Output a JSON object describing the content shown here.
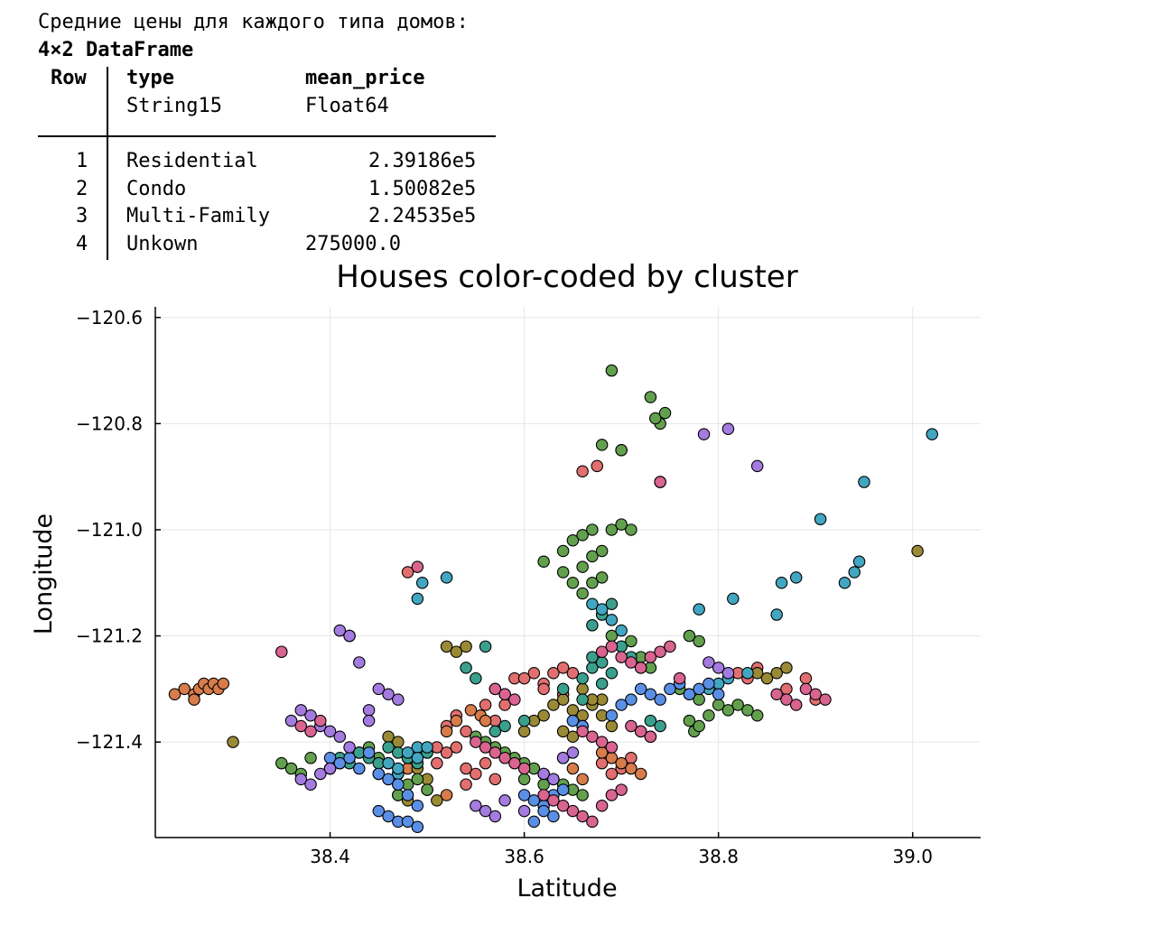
{
  "output": {
    "caption": "Средние цены для каждого типа домов:",
    "df_title": "4×2 DataFrame",
    "columns": [
      {
        "name": "Row",
        "eltype": ""
      },
      {
        "name": "type",
        "eltype": "String15"
      },
      {
        "name": "mean_price",
        "eltype": "Float64"
      }
    ],
    "rows": [
      {
        "row": "1",
        "type": "Residential",
        "mean_price": "2.39186e5"
      },
      {
        "row": "2",
        "type": "Condo",
        "mean_price": "1.50082e5"
      },
      {
        "row": "3",
        "type": "Multi-Family",
        "mean_price": "2.24535e5"
      },
      {
        "row": "4",
        "type": "Unkown",
        "mean_price": "275000.0"
      }
    ]
  },
  "chart_data": {
    "type": "scatter",
    "title": "Houses color-coded by cluster",
    "xlabel": "Latitude",
    "ylabel": "Longitude",
    "xlim": [
      38.22,
      39.07
    ],
    "ylim": [
      -121.58,
      -120.58
    ],
    "xticks": [
      38.4,
      38.6,
      38.8,
      39.0
    ],
    "xtick_labels": [
      "38.4",
      "38.6",
      "38.8",
      "39.0"
    ],
    "yticks": [
      -120.6,
      -120.8,
      -121.0,
      -121.2,
      -121.4
    ],
    "ytick_labels": [
      "−120.6",
      "−120.8",
      "−121.0",
      "−121.2",
      "−121.4"
    ],
    "grid": true,
    "legend": false,
    "cluster_colors": [
      "#e26f6f",
      "#d77c4a",
      "#9b8a35",
      "#62a04e",
      "#3aa08d",
      "#42a6c0",
      "#5a8fe6",
      "#a47be0",
      "#d8648f"
    ],
    "series": [
      {
        "cluster": 1,
        "x": [
          38.66,
          38.675,
          38.74,
          38.48,
          38.48,
          38.5,
          38.51,
          38.51,
          38.52,
          38.53,
          38.54,
          38.54,
          38.56,
          38.56,
          38.57,
          38.57,
          38.58,
          38.58,
          38.59,
          38.6,
          38.61,
          38.62,
          38.63,
          38.64,
          38.55,
          38.56,
          38.57,
          38.45,
          38.46,
          38.47,
          38.87,
          38.89,
          38.9,
          38.82,
          38.84,
          38.83,
          38.68,
          38.7,
          38.71,
          38.69,
          38.62,
          38.64,
          38.65,
          38.52,
          38.53,
          38.54
        ],
        "y": [
          -120.89,
          -120.88,
          -120.91,
          -121.08,
          -121.43,
          -121.42,
          -121.41,
          -121.44,
          -121.42,
          -121.41,
          -121.45,
          -121.48,
          -121.33,
          -121.36,
          -121.36,
          -121.3,
          -121.31,
          -121.33,
          -121.28,
          -121.28,
          -121.27,
          -121.29,
          -121.27,
          -121.26,
          -121.46,
          -121.44,
          -121.47,
          -121.46,
          -121.47,
          -121.48,
          -121.3,
          -121.28,
          -121.32,
          -121.27,
          -121.26,
          -121.28,
          -121.44,
          -121.45,
          -121.43,
          -121.46,
          -121.3,
          -121.31,
          -121.27,
          -121.37,
          -121.35,
          -121.38
        ]
      },
      {
        "cluster": 2,
        "x": [
          38.24,
          38.25,
          38.26,
          38.265,
          38.27,
          38.275,
          38.28,
          38.285,
          38.29,
          38.26,
          38.555,
          38.56,
          38.545,
          38.53,
          38.52,
          38.48,
          38.47,
          38.49,
          38.69,
          38.7,
          38.71,
          38.72,
          38.68,
          38.65,
          38.66,
          38.64,
          38.52,
          38.5
        ],
        "y": [
          -121.31,
          -121.3,
          -121.31,
          -121.3,
          -121.29,
          -121.3,
          -121.29,
          -121.3,
          -121.29,
          -121.32,
          -121.35,
          -121.36,
          -121.34,
          -121.36,
          -121.38,
          -121.45,
          -121.46,
          -121.44,
          -121.43,
          -121.44,
          -121.45,
          -121.46,
          -121.42,
          -121.45,
          -121.47,
          -121.43,
          -121.5,
          -121.49
        ]
      },
      {
        "cluster": 3,
        "x": [
          38.3,
          39.005,
          38.52,
          38.53,
          38.54,
          38.6,
          38.61,
          38.62,
          38.63,
          38.64,
          38.65,
          38.66,
          38.67,
          38.68,
          38.65,
          38.66,
          38.64,
          38.84,
          38.85,
          38.86,
          38.87,
          38.46,
          38.47,
          38.48,
          38.49,
          38.5,
          38.51,
          38.47,
          38.48,
          38.66,
          38.67,
          38.69,
          38.68
        ],
        "y": [
          -121.4,
          -121.04,
          -121.22,
          -121.23,
          -121.22,
          -121.38,
          -121.36,
          -121.35,
          -121.33,
          -121.32,
          -121.34,
          -121.35,
          -121.33,
          -121.32,
          -121.39,
          -121.37,
          -121.38,
          -121.27,
          -121.28,
          -121.27,
          -121.26,
          -121.39,
          -121.4,
          -121.43,
          -121.45,
          -121.47,
          -121.51,
          -121.5,
          -121.51,
          -121.3,
          -121.32,
          -121.37,
          -121.35
        ]
      },
      {
        "cluster": 4,
        "x": [
          38.69,
          38.7,
          38.73,
          38.74,
          38.735,
          38.745,
          38.68,
          38.7,
          38.62,
          38.64,
          38.65,
          38.66,
          38.67,
          38.69,
          38.7,
          38.71,
          38.66,
          38.67,
          38.68,
          38.64,
          38.65,
          38.66,
          38.67,
          38.68,
          38.69,
          38.7,
          38.71,
          38.72,
          38.73,
          38.77,
          38.775,
          38.78,
          38.79,
          38.8,
          38.81,
          38.77,
          38.78,
          38.55,
          38.56,
          38.57,
          38.58,
          38.59,
          38.6,
          38.61,
          38.62,
          38.63,
          38.64,
          38.65,
          38.66,
          38.6,
          38.62,
          38.64,
          38.35,
          38.36,
          38.37,
          38.38,
          38.4,
          38.41,
          38.42,
          38.43,
          38.44,
          38.45,
          38.46,
          38.47,
          38.48,
          38.49,
          38.5,
          38.47,
          38.76,
          38.77,
          38.78,
          38.82,
          38.83,
          38.84
        ],
        "y": [
          -120.7,
          -120.85,
          -120.75,
          -120.8,
          -120.79,
          -120.78,
          -120.84,
          -120.85,
          -121.06,
          -121.04,
          -121.02,
          -121.01,
          -121.0,
          -121.0,
          -120.99,
          -121.0,
          -121.07,
          -121.05,
          -121.04,
          -121.08,
          -121.1,
          -121.12,
          -121.1,
          -121.09,
          -121.2,
          -121.22,
          -121.21,
          -121.24,
          -121.26,
          -121.36,
          -121.38,
          -121.37,
          -121.35,
          -121.33,
          -121.34,
          -121.2,
          -121.21,
          -121.39,
          -121.4,
          -121.41,
          -121.42,
          -121.43,
          -121.44,
          -121.45,
          -121.46,
          -121.47,
          -121.48,
          -121.49,
          -121.5,
          -121.47,
          -121.48,
          -121.49,
          -121.44,
          -121.45,
          -121.46,
          -121.43,
          -121.45,
          -121.44,
          -121.43,
          -121.42,
          -121.41,
          -121.43,
          -121.44,
          -121.46,
          -121.48,
          -121.47,
          -121.49,
          -121.5,
          -121.3,
          -121.31,
          -121.32,
          -121.33,
          -121.34,
          -121.35
        ]
      },
      {
        "cluster": 5,
        "x": [
          38.55,
          38.56,
          38.54,
          38.68,
          38.69,
          38.67,
          38.7,
          38.71,
          38.72,
          38.73,
          38.74,
          38.66,
          38.67,
          38.68,
          38.64,
          38.66,
          38.68,
          38.69,
          38.67,
          38.43,
          38.44,
          38.45,
          38.46,
          38.47,
          38.48,
          38.49,
          38.5,
          38.42,
          38.41,
          38.4,
          38.57,
          38.58,
          38.6
        ],
        "y": [
          -121.28,
          -121.22,
          -121.26,
          -121.16,
          -121.14,
          -121.18,
          -121.22,
          -121.24,
          -121.26,
          -121.36,
          -121.37,
          -121.28,
          -121.26,
          -121.25,
          -121.3,
          -121.32,
          -121.29,
          -121.27,
          -121.24,
          -121.42,
          -121.43,
          -121.44,
          -121.41,
          -121.42,
          -121.43,
          -121.44,
          -121.42,
          -121.44,
          -121.43,
          -121.45,
          -121.38,
          -121.37,
          -121.36
        ]
      },
      {
        "cluster": 6,
        "x": [
          39.02,
          38.95,
          38.945,
          38.94,
          38.93,
          38.905,
          38.88,
          38.865,
          38.86,
          38.815,
          38.78,
          38.67,
          38.68,
          38.69,
          38.7,
          38.495,
          38.49,
          38.49,
          38.52,
          38.47,
          38.48,
          38.49,
          38.5,
          38.46,
          38.47,
          38.8,
          38.79,
          38.81,
          38.83
        ],
        "y": [
          -120.82,
          -120.91,
          -121.06,
          -121.08,
          -121.1,
          -120.98,
          -121.09,
          -121.1,
          -121.16,
          -121.13,
          -121.15,
          -121.14,
          -121.15,
          -121.17,
          -121.19,
          -121.1,
          -121.13,
          -121.41,
          -121.09,
          -121.46,
          -121.42,
          -121.43,
          -121.41,
          -121.44,
          -121.45,
          -121.29,
          -121.3,
          -121.28,
          -121.27
        ]
      },
      {
        "cluster": 7,
        "x": [
          38.6,
          38.61,
          38.62,
          38.63,
          38.64,
          38.62,
          38.63,
          38.61,
          38.4,
          38.41,
          38.42,
          38.43,
          38.44,
          38.45,
          38.46,
          38.47,
          38.48,
          38.49,
          38.45,
          38.46,
          38.47,
          38.48,
          38.49,
          38.72,
          38.73,
          38.74,
          38.75,
          38.76,
          38.77,
          38.78,
          38.79,
          38.8,
          38.71,
          38.7,
          38.69,
          38.72,
          38.73,
          38.65,
          38.66
        ],
        "y": [
          -121.5,
          -121.51,
          -121.52,
          -121.5,
          -121.49,
          -121.53,
          -121.54,
          -121.55,
          -121.43,
          -121.44,
          -121.43,
          -121.45,
          -121.42,
          -121.46,
          -121.47,
          -121.48,
          -121.5,
          -121.52,
          -121.53,
          -121.54,
          -121.55,
          -121.55,
          -121.56,
          -121.3,
          -121.31,
          -121.32,
          -121.3,
          -121.29,
          -121.31,
          -121.3,
          -121.29,
          -121.31,
          -121.32,
          -121.33,
          -121.35,
          -121.38,
          -121.39,
          -121.36,
          -121.37
        ]
      },
      {
        "cluster": 8,
        "x": [
          38.785,
          38.81,
          38.84,
          38.43,
          38.42,
          38.41,
          38.42,
          38.38,
          38.37,
          38.36,
          38.39,
          38.4,
          38.41,
          38.42,
          38.45,
          38.46,
          38.47,
          38.44,
          38.44,
          38.55,
          38.56,
          38.57,
          38.58,
          38.6,
          38.62,
          38.63,
          38.64,
          38.65,
          38.79,
          38.8,
          38.81,
          38.37,
          38.38,
          38.39,
          38.4
        ],
        "y": [
          -120.82,
          -120.81,
          -120.88,
          -121.25,
          -121.2,
          -121.19,
          -121.2,
          -121.35,
          -121.34,
          -121.36,
          -121.37,
          -121.38,
          -121.39,
          -121.41,
          -121.3,
          -121.31,
          -121.32,
          -121.34,
          -121.36,
          -121.52,
          -121.53,
          -121.54,
          -121.51,
          -121.53,
          -121.46,
          -121.47,
          -121.43,
          -121.42,
          -121.25,
          -121.26,
          -121.27,
          -121.47,
          -121.48,
          -121.46,
          -121.45
        ]
      },
      {
        "cluster": 9,
        "x": [
          38.74,
          38.49,
          38.35,
          38.68,
          38.69,
          38.7,
          38.71,
          38.72,
          38.73,
          38.74,
          38.75,
          38.76,
          38.86,
          38.87,
          38.88,
          38.89,
          38.9,
          38.91,
          38.62,
          38.63,
          38.64,
          38.65,
          38.66,
          38.67,
          38.68,
          38.69,
          38.7,
          38.55,
          38.56,
          38.57,
          38.58,
          38.59,
          38.6,
          38.66,
          38.67,
          38.68,
          38.69,
          38.37,
          38.38,
          38.39,
          38.57,
          38.58,
          38.59,
          38.71,
          38.72,
          38.73
        ],
        "y": [
          -120.91,
          -121.07,
          -121.23,
          -121.23,
          -121.22,
          -121.24,
          -121.25,
          -121.26,
          -121.24,
          -121.23,
          -121.22,
          -121.28,
          -121.31,
          -121.32,
          -121.33,
          -121.3,
          -121.31,
          -121.32,
          -121.5,
          -121.51,
          -121.52,
          -121.53,
          -121.54,
          -121.55,
          -121.52,
          -121.5,
          -121.49,
          -121.4,
          -121.41,
          -121.42,
          -121.43,
          -121.44,
          -121.45,
          -121.38,
          -121.39,
          -121.4,
          -121.41,
          -121.37,
          -121.38,
          -121.36,
          -121.3,
          -121.31,
          -121.32,
          -121.37,
          -121.38,
          -121.39
        ]
      }
    ]
  }
}
